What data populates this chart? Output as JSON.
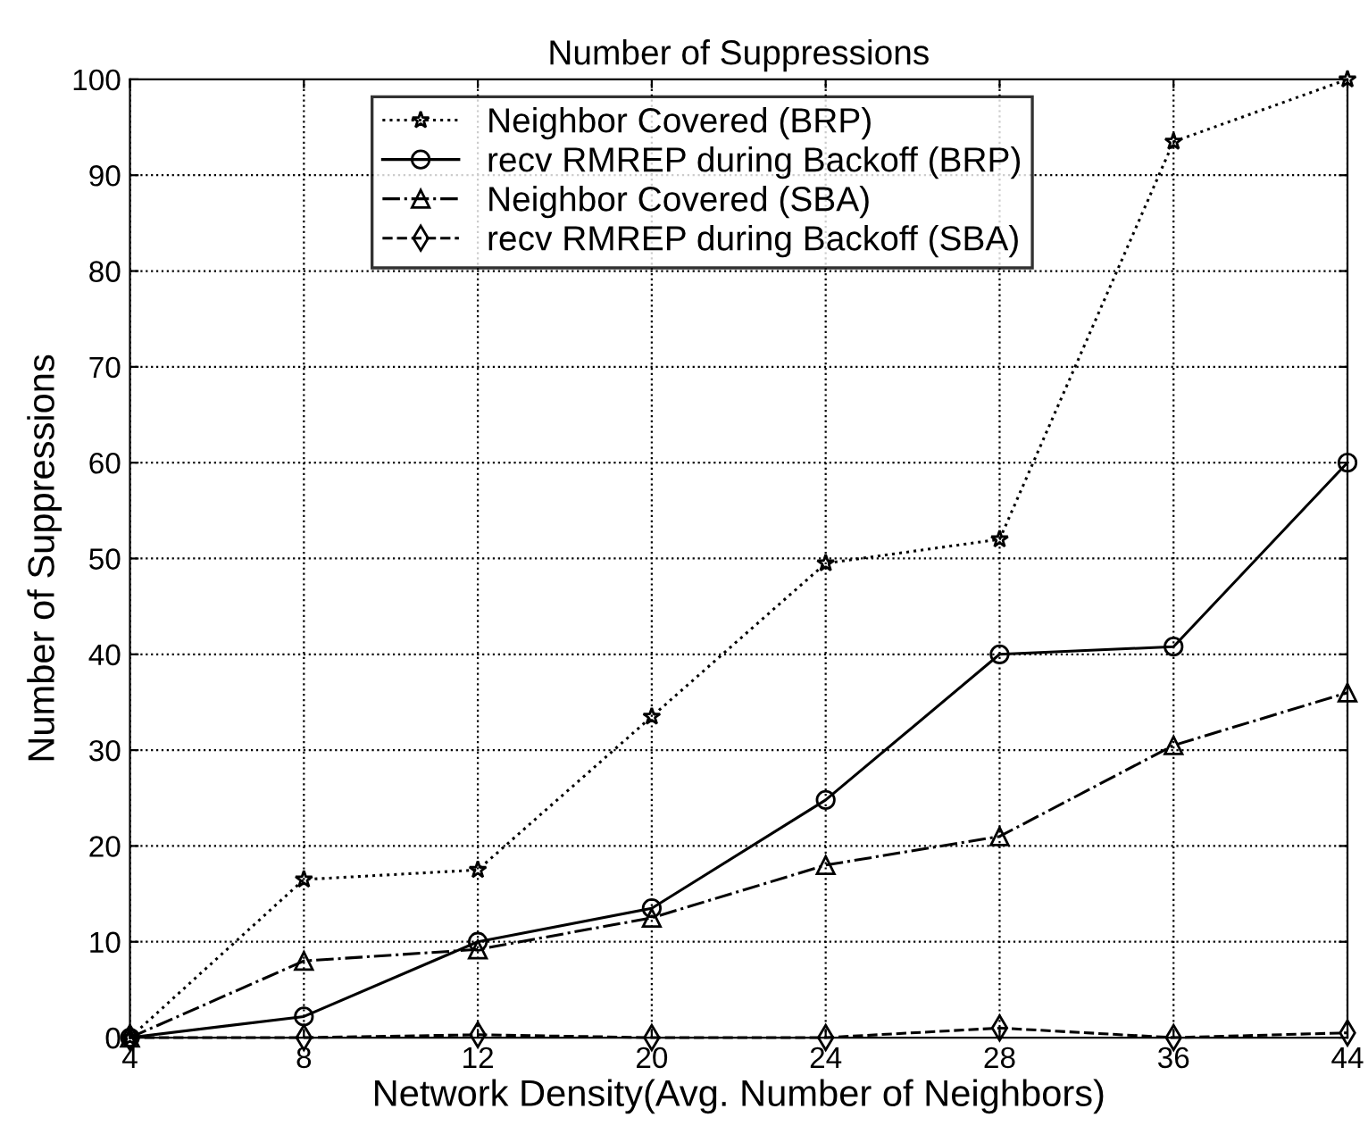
{
  "chart_data": {
    "type": "line",
    "title": "Number of Suppressions",
    "xlabel": "Network Density(Avg. Number of Neighbors)",
    "ylabel": "Number of Suppressions",
    "categories": [
      "4",
      "8",
      "12",
      "20",
      "24",
      "28",
      "36",
      "44"
    ],
    "series": [
      {
        "name": "Neighbor Covered (BRP)",
        "color": "#000000",
        "marker": "star",
        "line_style": "dotted",
        "values": [
          0,
          16.5,
          17.5,
          33.5,
          49.5,
          52,
          93.5,
          100
        ]
      },
      {
        "name": "recv RMREP during Backoff (BRP)",
        "color": "#000000",
        "marker": "circle",
        "line_style": "solid",
        "values": [
          0,
          2.2,
          10,
          13.5,
          24.8,
          40,
          40.8,
          60
        ]
      },
      {
        "name": "Neighbor Covered (SBA)",
        "color": "#000000",
        "marker": "triangle",
        "line_style": "dashdot",
        "values": [
          0,
          8,
          9.2,
          12.5,
          18,
          21,
          30.5,
          36
        ]
      },
      {
        "name": "recv RMREP during Backoff (SBA)",
        "color": "#000000",
        "marker": "diamond",
        "line_style": "dashed",
        "values": [
          0,
          0,
          0.3,
          0,
          0,
          1,
          0,
          0.5
        ]
      }
    ],
    "ylim": [
      0,
      100
    ],
    "yticks": [
      0,
      10,
      20,
      30,
      40,
      50,
      60,
      70,
      80,
      90,
      100
    ],
    "grid": true,
    "legend": "top"
  }
}
